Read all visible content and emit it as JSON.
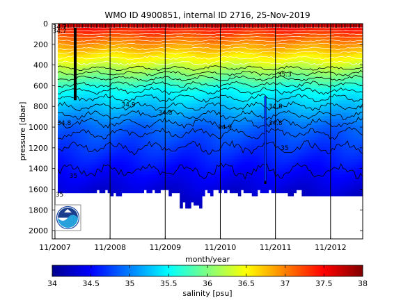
{
  "chart_data": {
    "type": "heatmap",
    "title": "WMO ID 4900851, internal ID 2716, 25-Nov-2019",
    "xlabel": "month/year",
    "ylabel": "pressure [dbar]",
    "x_ticks": [
      "11/2007",
      "11/2008",
      "11/2009",
      "11/2010",
      "11/2011",
      "11/2012"
    ],
    "y_ticks": [
      "0",
      "200",
      "400",
      "600",
      "800",
      "1000",
      "1200",
      "1400",
      "1600",
      "1800",
      "2000"
    ],
    "ylim": [
      0,
      2080
    ],
    "y_reversed": true,
    "colorbar": {
      "label": "salinity [psu]",
      "range": [
        34,
        38
      ],
      "ticks": [
        "34",
        "34.5",
        "35",
        "35.5",
        "36",
        "36.5",
        "37",
        "37.5",
        "38"
      ],
      "colormap": "jet"
    },
    "contour_labels": [
      {
        "text": "34.7",
        "date": "2007-12",
        "pressure": 30
      },
      {
        "text": "34.7",
        "date": "2007-12",
        "pressure": 70
      },
      {
        "text": "34.8",
        "date": "2008-01",
        "pressure": 960
      },
      {
        "text": "34.9",
        "date": "2009-03",
        "pressure": 780
      },
      {
        "text": "34.8",
        "date": "2009-11",
        "pressure": 860
      },
      {
        "text": "34.9",
        "date": "2010-12",
        "pressure": 1000
      },
      {
        "text": "34.8",
        "date": "2011-11",
        "pressure": 960
      },
      {
        "text": "34.8",
        "date": "2011-11",
        "pressure": 800
      },
      {
        "text": "35",
        "date": "2012-01",
        "pressure": 1200
      },
      {
        "text": "35.3",
        "date": "2012-01",
        "pressure": 490
      },
      {
        "text": "35",
        "date": "2008-03",
        "pressure": 1470
      },
      {
        "text": "35",
        "date": "2007-12",
        "pressure": 1650
      }
    ],
    "profile_dates_marker": "tick marks along top axis",
    "vertical_lines_at": [
      "11/2007",
      "11/2008",
      "11/2009",
      "11/2010",
      "11/2011",
      "11/2012"
    ],
    "logo": "NOAA"
  }
}
